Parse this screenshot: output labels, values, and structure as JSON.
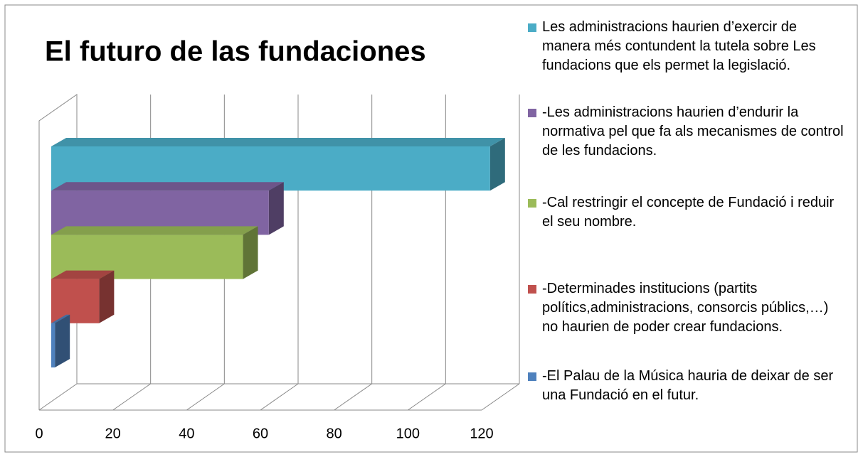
{
  "chart_data": {
    "type": "bar3d",
    "title": "El futuro de las fundaciones",
    "categories": [
      "Les administracions haurien d’exercir de manera més contundent la tutela sobre Les fundacions que els permet la legislació.",
      "-Les administracions haurien d’endurir la normativa pel que fa als mecanismes de control de les fundacions.",
      "-Cal restringir el concepte de Fundació i reduir el seu nombre.",
      "-Determinades institucions (partits polítics,administracions, consorcis públics,…) no haurien de poder crear fundacions.",
      "-El Palau de la Música hauria de deixar de ser una Fundació en el futur."
    ],
    "values": [
      119,
      59,
      52,
      13,
      1
    ],
    "colors": [
      "#4bacc6",
      "#8064a2",
      "#9bbb59",
      "#c0504d",
      "#4f81bd"
    ],
    "xlim": [
      0,
      120
    ],
    "xticks": [
      0,
      20,
      40,
      60,
      80,
      100,
      120
    ],
    "grid": true
  }
}
